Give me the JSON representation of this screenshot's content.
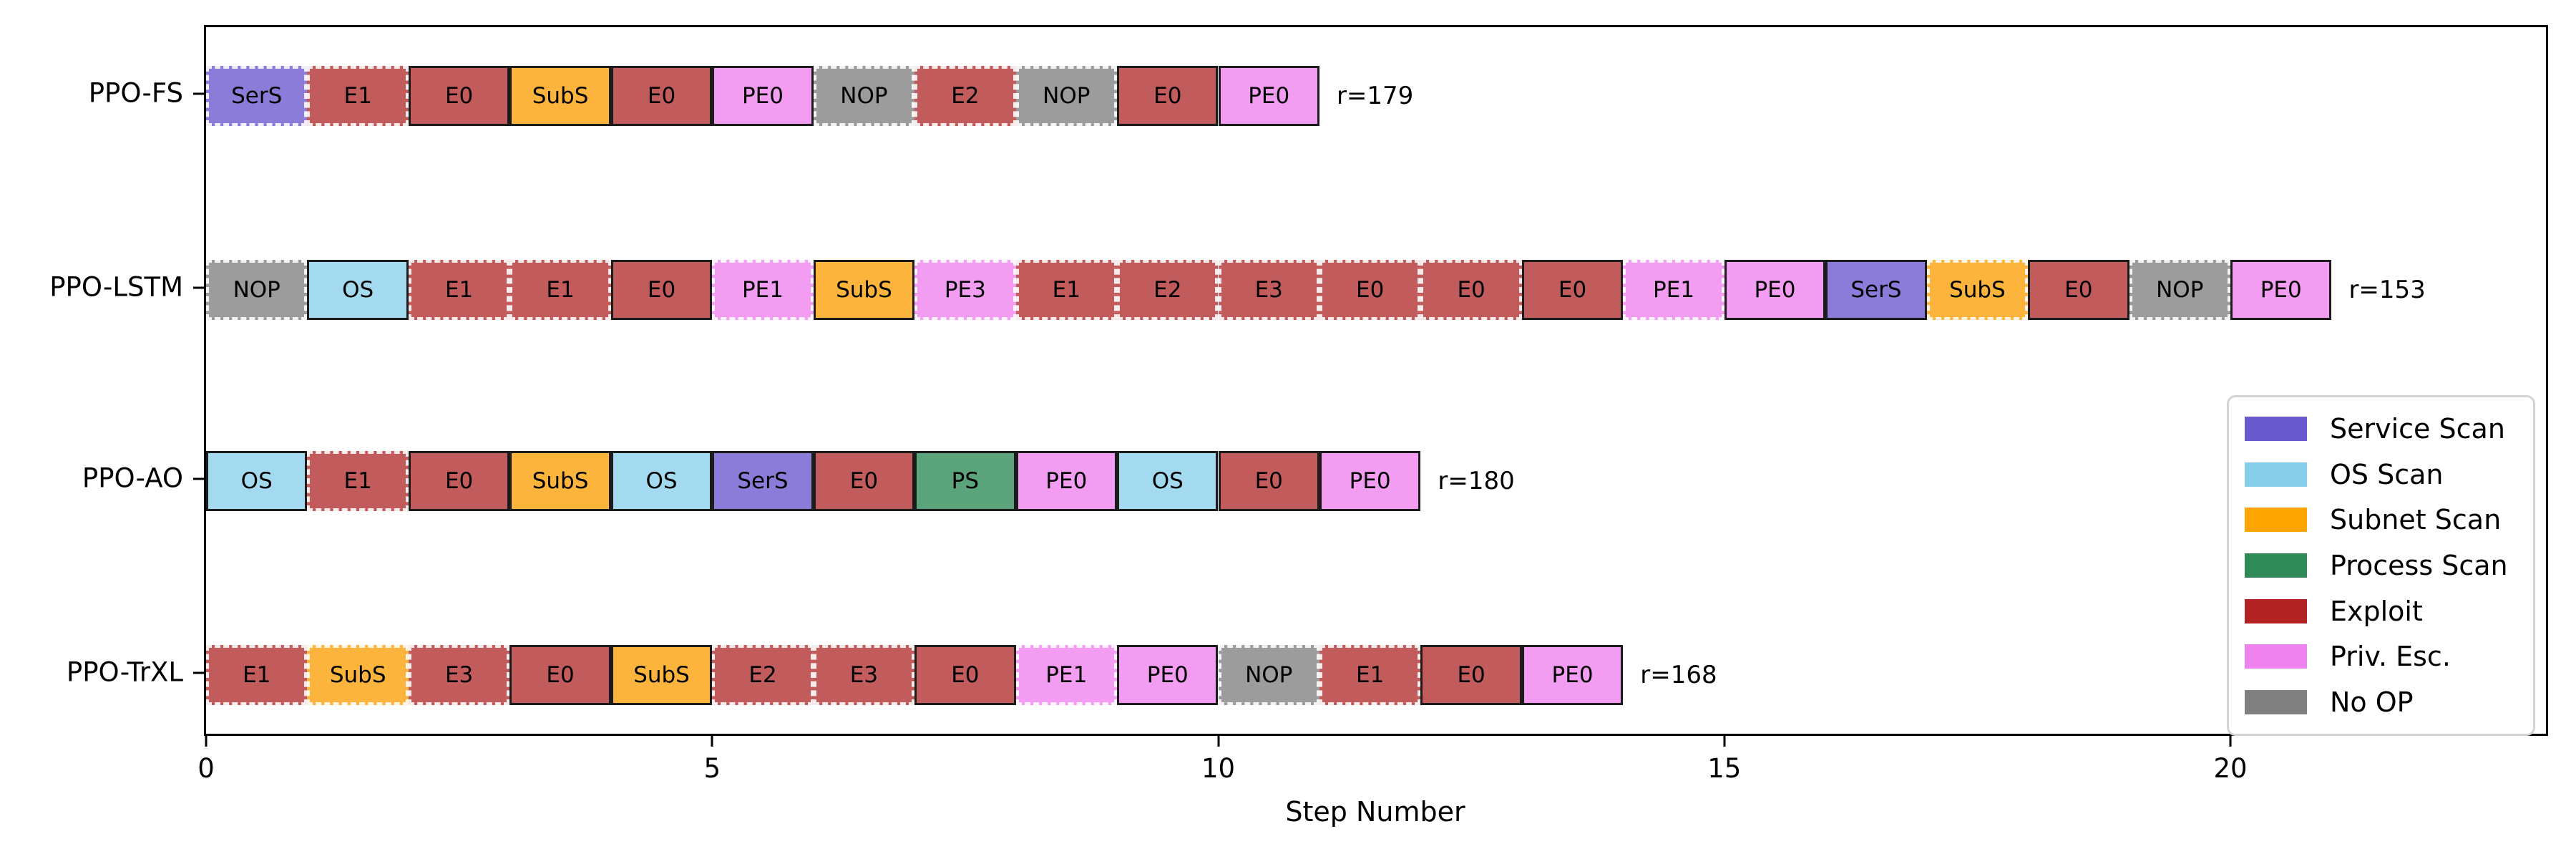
{
  "chart_data": {
    "type": "timeline",
    "xlabel": "Step Number",
    "xticks": [
      0,
      5,
      10,
      15,
      20
    ],
    "xtick_labels": [
      "0",
      "5",
      "10",
      "15",
      "20"
    ],
    "xlim": [
      0,
      23.15
    ],
    "grid": false,
    "legend_position": "center-right",
    "type_colors": {
      "service_scan": {
        "fill": "#8A7CD8",
        "legend": "#6A5ACD"
      },
      "os_scan": {
        "fill": "#A3DAEF",
        "legend": "#87CEEB"
      },
      "subnet_scan": {
        "fill": "#FDB43C",
        "legend": "#FFA500"
      },
      "process_scan": {
        "fill": "#5BA37B",
        "legend": "#2E8B57"
      },
      "exploit": {
        "fill": "#C25C5C",
        "legend": "#B22222"
      },
      "priv_esc": {
        "fill": "#F29CF2",
        "legend": "#EE82EE"
      },
      "no_op": {
        "fill": "#9C9C9C",
        "legend": "#808080"
      }
    },
    "legend": [
      {
        "label": "Service Scan",
        "type": "service_scan"
      },
      {
        "label": "OS Scan",
        "type": "os_scan"
      },
      {
        "label": "Subnet Scan",
        "type": "subnet_scan"
      },
      {
        "label": "Process Scan",
        "type": "process_scan"
      },
      {
        "label": "Exploit",
        "type": "exploit"
      },
      {
        "label": "Priv. Esc.",
        "type": "priv_esc"
      },
      {
        "label": "No OP",
        "type": "no_op"
      }
    ],
    "rows": [
      {
        "label": "PPO-FS",
        "reward": "r=179",
        "steps": [
          {
            "label": "SerS",
            "type": "service_scan",
            "dashed": true
          },
          {
            "label": "E1",
            "type": "exploit",
            "dashed": true
          },
          {
            "label": "E0",
            "type": "exploit",
            "dashed": false
          },
          {
            "label": "SubS",
            "type": "subnet_scan",
            "dashed": false
          },
          {
            "label": "E0",
            "type": "exploit",
            "dashed": false
          },
          {
            "label": "PE0",
            "type": "priv_esc",
            "dashed": false
          },
          {
            "label": "NOP",
            "type": "no_op",
            "dashed": true
          },
          {
            "label": "E2",
            "type": "exploit",
            "dashed": true
          },
          {
            "label": "NOP",
            "type": "no_op",
            "dashed": true
          },
          {
            "label": "E0",
            "type": "exploit",
            "dashed": false
          },
          {
            "label": "PE0",
            "type": "priv_esc",
            "dashed": false
          }
        ]
      },
      {
        "label": "PPO-LSTM",
        "reward": "r=153",
        "steps": [
          {
            "label": "NOP",
            "type": "no_op",
            "dashed": true
          },
          {
            "label": "OS",
            "type": "os_scan",
            "dashed": false
          },
          {
            "label": "E1",
            "type": "exploit",
            "dashed": true
          },
          {
            "label": "E1",
            "type": "exploit",
            "dashed": true
          },
          {
            "label": "E0",
            "type": "exploit",
            "dashed": false
          },
          {
            "label": "PE1",
            "type": "priv_esc",
            "dashed": true
          },
          {
            "label": "SubS",
            "type": "subnet_scan",
            "dashed": false
          },
          {
            "label": "PE3",
            "type": "priv_esc",
            "dashed": true
          },
          {
            "label": "E1",
            "type": "exploit",
            "dashed": true
          },
          {
            "label": "E2",
            "type": "exploit",
            "dashed": true
          },
          {
            "label": "E3",
            "type": "exploit",
            "dashed": true
          },
          {
            "label": "E0",
            "type": "exploit",
            "dashed": true
          },
          {
            "label": "E0",
            "type": "exploit",
            "dashed": true
          },
          {
            "label": "E0",
            "type": "exploit",
            "dashed": false
          },
          {
            "label": "PE1",
            "type": "priv_esc",
            "dashed": true
          },
          {
            "label": "PE0",
            "type": "priv_esc",
            "dashed": false
          },
          {
            "label": "SerS",
            "type": "service_scan",
            "dashed": false
          },
          {
            "label": "SubS",
            "type": "subnet_scan",
            "dashed": true
          },
          {
            "label": "E0",
            "type": "exploit",
            "dashed": false
          },
          {
            "label": "NOP",
            "type": "no_op",
            "dashed": true
          },
          {
            "label": "PE0",
            "type": "priv_esc",
            "dashed": false
          }
        ]
      },
      {
        "label": "PPO-AO",
        "reward": "r=180",
        "steps": [
          {
            "label": "OS",
            "type": "os_scan",
            "dashed": false
          },
          {
            "label": "E1",
            "type": "exploit",
            "dashed": true
          },
          {
            "label": "E0",
            "type": "exploit",
            "dashed": false
          },
          {
            "label": "SubS",
            "type": "subnet_scan",
            "dashed": false
          },
          {
            "label": "OS",
            "type": "os_scan",
            "dashed": false
          },
          {
            "label": "SerS",
            "type": "service_scan",
            "dashed": false
          },
          {
            "label": "E0",
            "type": "exploit",
            "dashed": false
          },
          {
            "label": "PS",
            "type": "process_scan",
            "dashed": false
          },
          {
            "label": "PE0",
            "type": "priv_esc",
            "dashed": false
          },
          {
            "label": "OS",
            "type": "os_scan",
            "dashed": false
          },
          {
            "label": "E0",
            "type": "exploit",
            "dashed": false
          },
          {
            "label": "PE0",
            "type": "priv_esc",
            "dashed": false
          }
        ]
      },
      {
        "label": "PPO-TrXL",
        "reward": "r=168",
        "steps": [
          {
            "label": "E1",
            "type": "exploit",
            "dashed": true
          },
          {
            "label": "SubS",
            "type": "subnet_scan",
            "dashed": true
          },
          {
            "label": "E3",
            "type": "exploit",
            "dashed": true
          },
          {
            "label": "E0",
            "type": "exploit",
            "dashed": false
          },
          {
            "label": "SubS",
            "type": "subnet_scan",
            "dashed": false
          },
          {
            "label": "E2",
            "type": "exploit",
            "dashed": true
          },
          {
            "label": "E3",
            "type": "exploit",
            "dashed": true
          },
          {
            "label": "E0",
            "type": "exploit",
            "dashed": false
          },
          {
            "label": "PE1",
            "type": "priv_esc",
            "dashed": true
          },
          {
            "label": "PE0",
            "type": "priv_esc",
            "dashed": false
          },
          {
            "label": "NOP",
            "type": "no_op",
            "dashed": true
          },
          {
            "label": "E1",
            "type": "exploit",
            "dashed": true
          },
          {
            "label": "E0",
            "type": "exploit",
            "dashed": false
          },
          {
            "label": "PE0",
            "type": "priv_esc",
            "dashed": false
          }
        ]
      }
    ]
  }
}
